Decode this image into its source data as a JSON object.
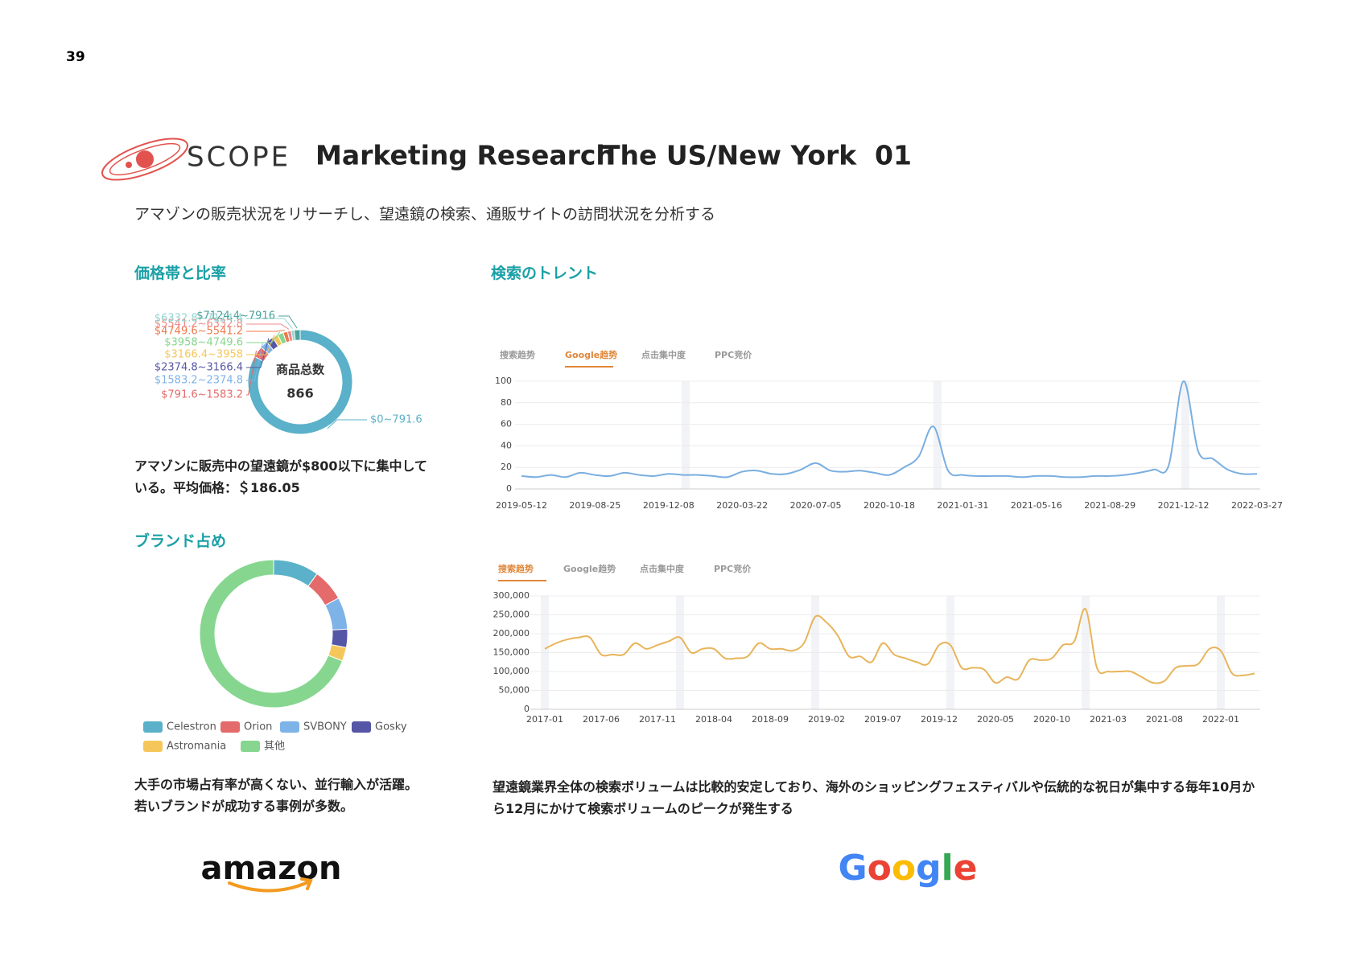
{
  "page_number": "39",
  "header": {
    "brand": "SCOPE",
    "title": "Marketing Research",
    "region": "The US/New York",
    "number": "01"
  },
  "subtitle": "アマゾンの販売状況をリサーチし、望遠鏡の検索、通販サイトの訪問状況を分析する",
  "sections": {
    "price": {
      "heading": "価格帯と比率",
      "text": "アマゾンに販売中の望遠鏡が$800以下に集中している。平均価格：＄186.05"
    },
    "brand": {
      "heading": "ブランド占め",
      "lines": [
        "大手の市場占有率が高くない、並行輸入が活躍。",
        "若いブランドが成功する事例が多数。"
      ]
    },
    "search": {
      "heading": "検索のトレント",
      "text": "望遠鏡業界全体の検索ボリュームは比較的安定しており、海外のショッピングフェスティバルや伝統的な祝日が集中する毎年10月から12月にかけて検索ボリュームのピークが発生する"
    }
  },
  "logos": {
    "amazon": "amazon",
    "google": "Google"
  },
  "chart_data": [
    {
      "type": "donut",
      "center_label": "商品总数",
      "center_value": "866",
      "categories": [
        "$0~791.6",
        "$791.6~1583.2",
        "$1583.2~2374.8",
        "$2374.8~3166.4",
        "$3166.4~3958",
        "$3958~4749.6",
        "$4749.6~5541.2",
        "$5541.2~6332.8",
        "$6332.8~7124.4",
        "$7124.4~7916"
      ],
      "values": [
        720,
        30,
        20,
        20,
        15,
        15,
        12,
        10,
        8,
        16
      ],
      "colors": [
        "#5ab1c9",
        "#e46b6b",
        "#7eb3e8",
        "#5656a6",
        "#f5c75a",
        "#86d68f",
        "#ec7a4d",
        "#f08a8a",
        "#8fd6d2",
        "#4aa39a"
      ]
    },
    {
      "type": "line",
      "tabs": [
        "搜索趋势",
        "Google趋势",
        "点击集中度",
        "PPC竞价"
      ],
      "active_tab": 1,
      "color": "#7aaee0",
      "grid": true,
      "categories": [
        "2019-05-12",
        null,
        null,
        null,
        null,
        "2019-08-25",
        null,
        null,
        null,
        null,
        "2019-12-08",
        null,
        null,
        null,
        null,
        "2020-03-22",
        null,
        null,
        null,
        null,
        "2020-07-05",
        null,
        null,
        null,
        null,
        "2020-10-18",
        null,
        null,
        null,
        null,
        "2021-01-31",
        null,
        null,
        null,
        null,
        "2021-05-16",
        null,
        null,
        null,
        null,
        "2021-08-29",
        null,
        null,
        null,
        null,
        "2021-12-12",
        null,
        null,
        null,
        null,
        "2022-03-27"
      ],
      "values": [
        12,
        11,
        13,
        11,
        15,
        13,
        12,
        15,
        13,
        12,
        14,
        13,
        13,
        12,
        11,
        16,
        17,
        14,
        14,
        18,
        24,
        17,
        16,
        17,
        15,
        13,
        20,
        30,
        58,
        17,
        13,
        12,
        12,
        12,
        11,
        12,
        12,
        11,
        11,
        12,
        12,
        13,
        15,
        18,
        22,
        100,
        35,
        28,
        18,
        14,
        14
      ],
      "ylim": [
        0,
        100
      ],
      "yticks": [
        0,
        20,
        40,
        60,
        80,
        100
      ]
    },
    {
      "type": "line",
      "tabs": [
        "搜索趋势",
        "Google趋势",
        "点击集中度",
        "PPC竞价"
      ],
      "active_tab": 0,
      "color": "#e8b45a",
      "grid": true,
      "categories": [
        "2017-01",
        null,
        null,
        null,
        null,
        "2017-06",
        null,
        null,
        null,
        null,
        "2017-11",
        null,
        null,
        null,
        null,
        "2018-04",
        null,
        null,
        null,
        null,
        "2018-09",
        null,
        null,
        null,
        null,
        "2019-02",
        null,
        null,
        null,
        null,
        "2019-07",
        null,
        null,
        null,
        null,
        "2019-12",
        null,
        null,
        null,
        null,
        "2020-05",
        null,
        null,
        null,
        null,
        "2020-10",
        null,
        null,
        null,
        null,
        "2021-03",
        null,
        null,
        null,
        null,
        "2021-08",
        null,
        null,
        null,
        null,
        "2022-01",
        null,
        null,
        null
      ],
      "values": [
        160000,
        175000,
        185000,
        190000,
        190000,
        145000,
        145000,
        145000,
        175000,
        160000,
        170000,
        180000,
        190000,
        150000,
        160000,
        160000,
        135000,
        135000,
        140000,
        175000,
        160000,
        160000,
        155000,
        175000,
        245000,
        230000,
        195000,
        140000,
        140000,
        125000,
        175000,
        145000,
        135000,
        125000,
        120000,
        170000,
        170000,
        110000,
        110000,
        105000,
        70000,
        85000,
        80000,
        130000,
        130000,
        135000,
        170000,
        180000,
        265000,
        110000,
        100000,
        100000,
        100000,
        85000,
        70000,
        75000,
        110000,
        115000,
        120000,
        160000,
        155000,
        95000,
        90000,
        95000
      ],
      "ylim": [
        0,
        300000
      ],
      "yticks": [
        0,
        {
          "value": 50000,
          "label": "50,000"
        },
        {
          "value": 100000,
          "label": "100,000"
        },
        {
          "value": 150000,
          "label": "150,000"
        },
        {
          "value": 200000,
          "label": "200,000"
        },
        {
          "value": 250000,
          "label": "250,000"
        },
        {
          "value": 300000,
          "label": "300,000"
        }
      ]
    },
    {
      "type": "donut",
      "legend": true,
      "categories": [
        "Celestron",
        "Orion",
        "SVBONY",
        "Gosky",
        "Astromania",
        "其他"
      ],
      "values": [
        10,
        7,
        7,
        4,
        3,
        69
      ],
      "colors": [
        "#5ab1c9",
        "#e46b6b",
        "#7eb3e8",
        "#5656a6",
        "#f5c75a",
        "#86d68f"
      ]
    }
  ]
}
